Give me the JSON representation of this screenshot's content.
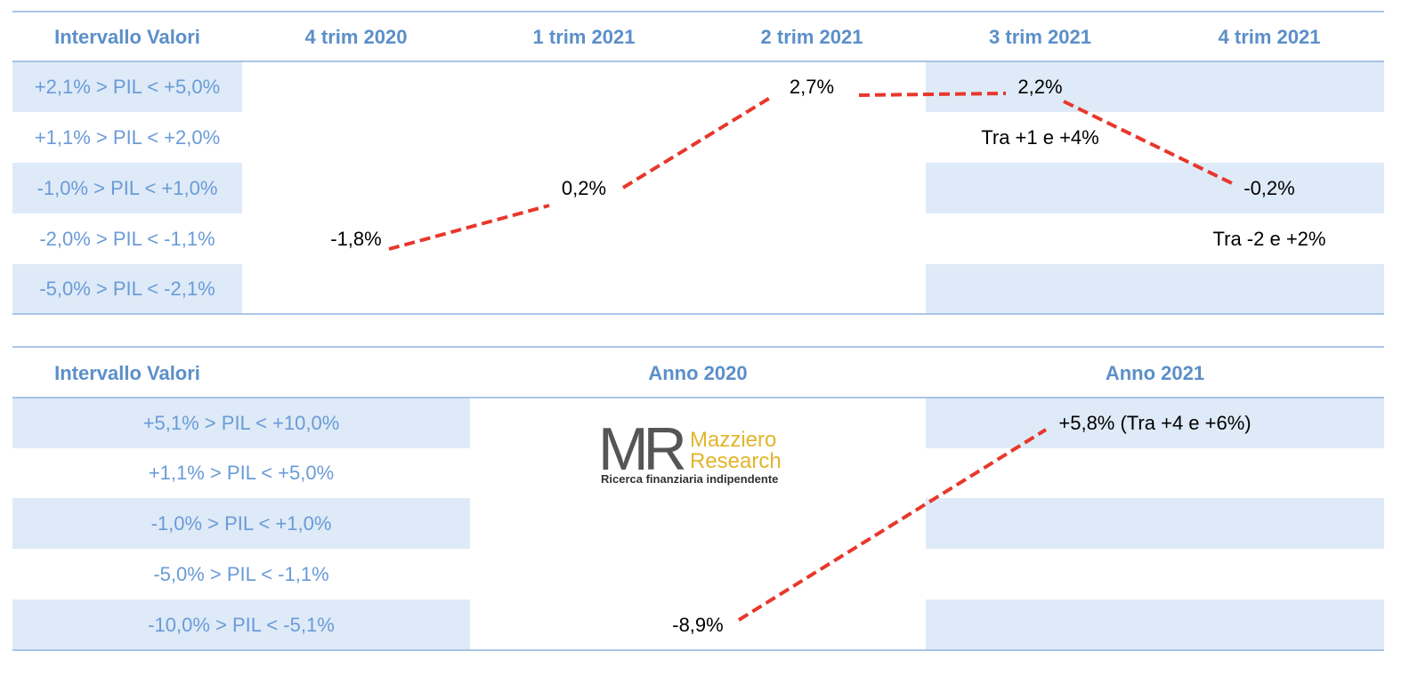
{
  "table1": {
    "header": [
      "Intervallo Valori",
      "4 trim 2020",
      "1 trim 2021",
      "2 trim 2021",
      "3 trim 2021",
      "4 trim 2021"
    ],
    "rows": [
      [
        "+2,1% > PIL < +5,0%",
        null,
        null,
        "2,7%",
        "2,2%",
        null
      ],
      [
        "+1,1% > PIL < +2,0%",
        null,
        null,
        null,
        "Tra +1 e +4%",
        null
      ],
      [
        "-1,0% > PIL < +1,0%",
        null,
        "0,2%",
        null,
        null,
        "-0,2%"
      ],
      [
        "-2,0% > PIL < -1,1%",
        "-1,8%",
        null,
        null,
        null,
        "Tra -2 e +2%"
      ],
      [
        "-5,0% > PIL < -2,1%",
        null,
        null,
        null,
        null,
        null
      ]
    ]
  },
  "table2": {
    "header": [
      "Intervallo Valori",
      "Anno 2020",
      "Anno 2021"
    ],
    "rows": [
      [
        "+5,1% > PIL < +10,0%",
        null,
        "+5,8% (Tra +4 e +6%)"
      ],
      [
        "+1,1% > PIL < +5,0%",
        null,
        null
      ],
      [
        "-1,0% > PIL < +1,0%",
        null,
        null
      ],
      [
        "-5,0% > PIL < -1,1%",
        null,
        null
      ],
      [
        "-10,0% > PIL < -5,1%",
        "-8,9%",
        null
      ]
    ]
  },
  "logo": {
    "mark": "MR",
    "name1": "Mazziero",
    "name2": "Research",
    "tagline": "Ricerca finanziaria indipendente"
  }
}
